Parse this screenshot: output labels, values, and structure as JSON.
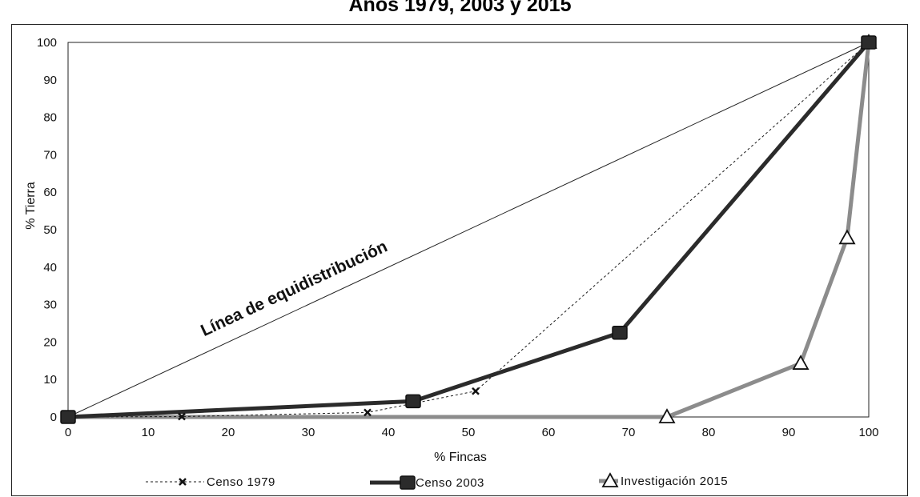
{
  "chart_data": {
    "type": "line",
    "title": "Años 1979, 2003 y 2015",
    "xlabel": "% Fincas",
    "ylabel": "% Tierra",
    "xlim": [
      0,
      100
    ],
    "ylim": [
      0,
      100
    ],
    "x_ticks": [
      "0",
      "10",
      "20",
      "30",
      "40",
      "50",
      "60",
      "70",
      "80",
      "90",
      "100"
    ],
    "y_ticks": [
      "0",
      "10",
      "20",
      "30",
      "40",
      "50",
      "60",
      "70",
      "80",
      "90",
      "100"
    ],
    "grid": false,
    "legend_position": "bottom",
    "annotation": "Línea de equidistribución",
    "equidistribution": {
      "x": [
        0,
        100
      ],
      "y": [
        0,
        100
      ]
    },
    "series": [
      {
        "name": "Censo 1979",
        "style": "dashed",
        "marker": "x",
        "color": "#1a1a1a",
        "x": [
          0,
          14.2,
          37.4,
          50.9,
          100
        ],
        "y": [
          0,
          0.1,
          1.2,
          6.9,
          100
        ]
      },
      {
        "name": "Censo 2003",
        "style": "solid-thick",
        "marker": "square",
        "color": "#2b2b2b",
        "x": [
          0,
          43.1,
          68.9,
          100
        ],
        "y": [
          0,
          4.2,
          22.5,
          100
        ]
      },
      {
        "name": "Investigación 2015",
        "style": "solid-thick",
        "marker": "triangle",
        "color": "#8c8c8c",
        "x": [
          0,
          74.8,
          91.5,
          97.3,
          100
        ],
        "y": [
          0,
          0,
          14.3,
          47.8,
          100
        ]
      }
    ]
  }
}
